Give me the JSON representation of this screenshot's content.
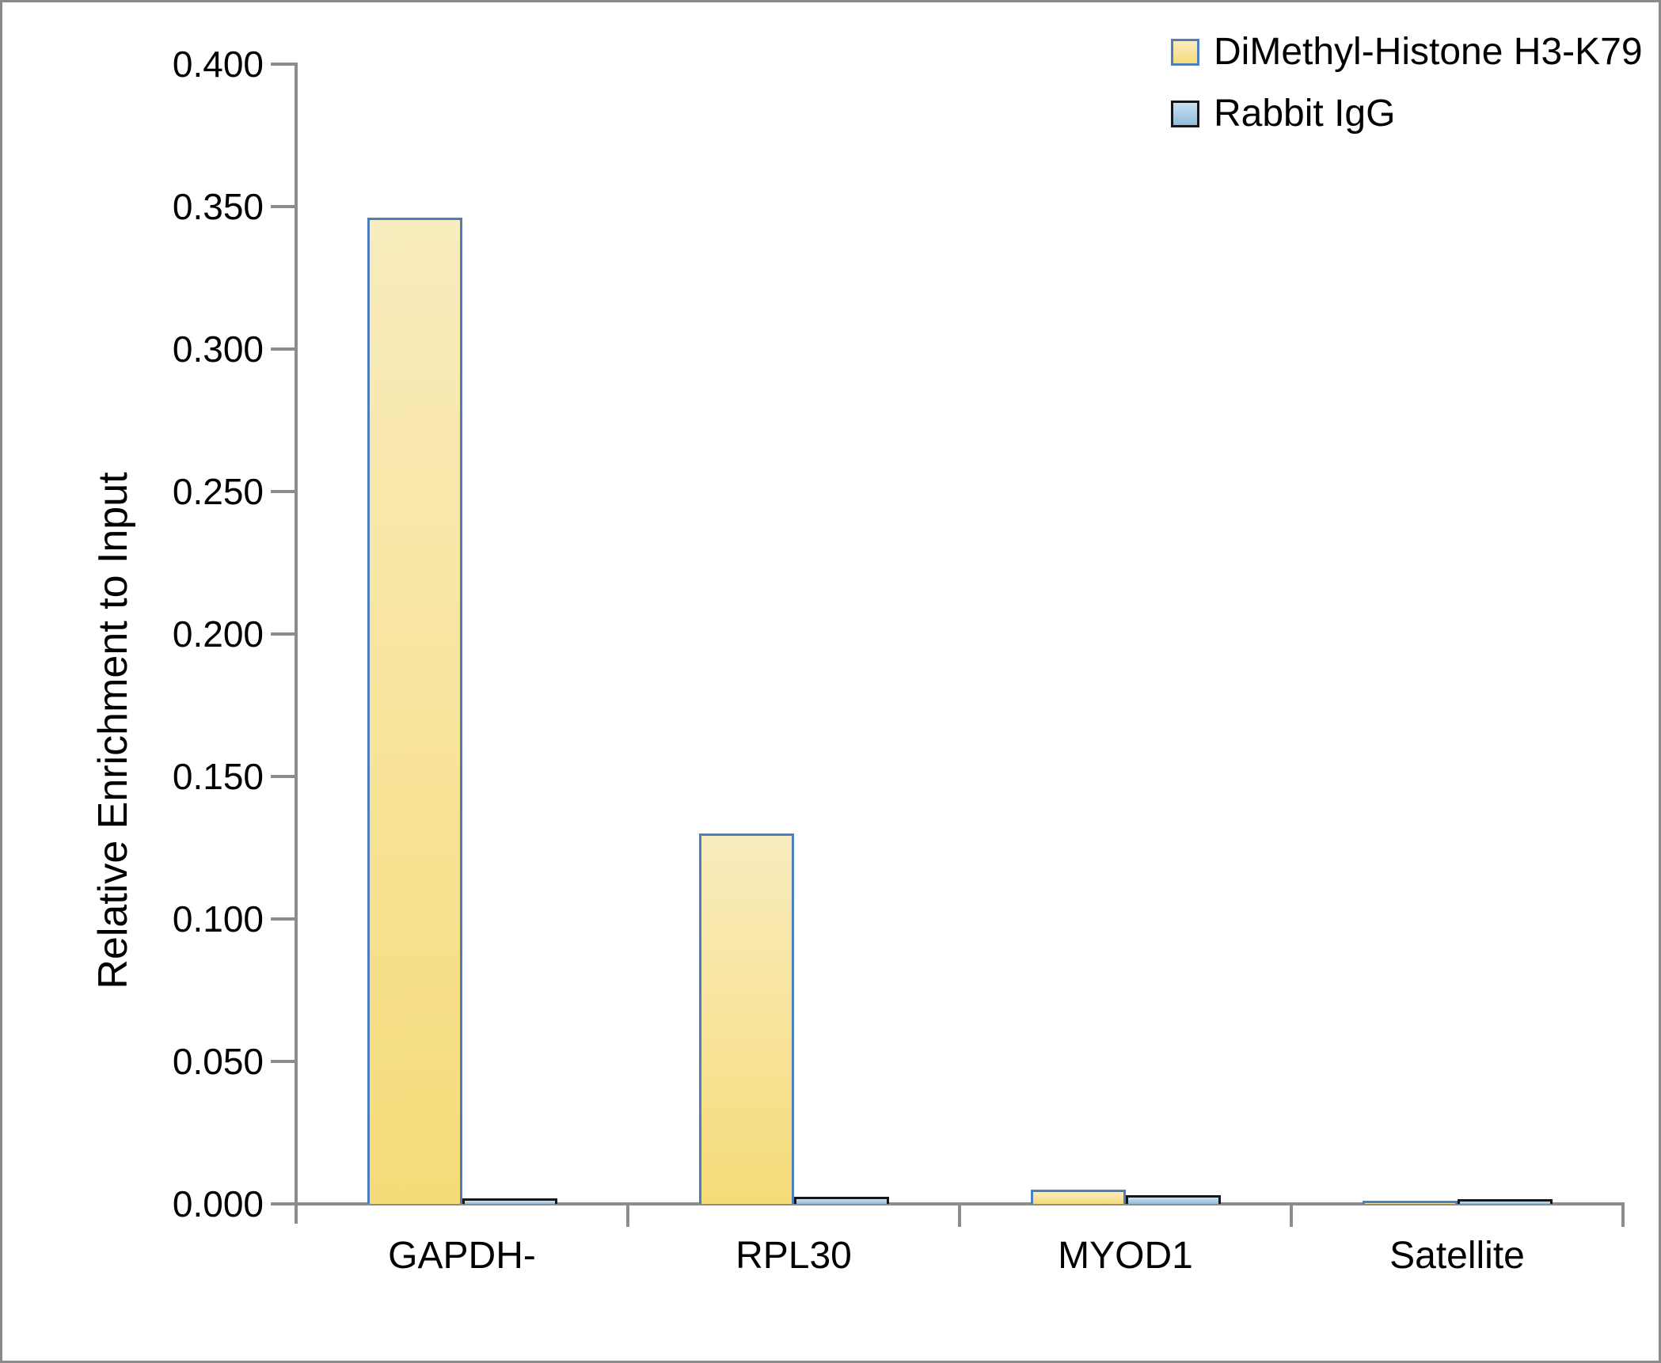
{
  "chart_data": {
    "type": "bar",
    "title": "",
    "categories": [
      "GAPDH-",
      "RPL30",
      "MYOD1",
      "Satellite"
    ],
    "series": [
      {
        "name": "DiMethyl-Histone H3-K79",
        "values": [
          0.346,
          0.13,
          0.005,
          0.001
        ],
        "fill_gradient_top": "#F9ECBE",
        "fill_gradient_bottom": "#F6DB79",
        "border_color": "#4D7EBB"
      },
      {
        "name": "Rabbit IgG",
        "values": [
          0.002,
          0.0025,
          0.003,
          0.0017
        ],
        "fill_gradient_top": "#CAE1F2",
        "fill_gradient_bottom": "#8FBCDB",
        "border_color": "#161616"
      }
    ],
    "xlabel": "",
    "ylabel": "Relative Enrichment to Input",
    "ylim": [
      0,
      0.4
    ],
    "ytick_step": 0.05,
    "ytick_labels": [
      "0.000",
      "0.050",
      "0.100",
      "0.150",
      "0.200",
      "0.250",
      "0.300",
      "0.350",
      "0.400"
    ],
    "legend_position": "top-right",
    "grid": false
  },
  "colors": {
    "axis": "#8C8C8C",
    "text": "#000000",
    "background": "#FFFFFF",
    "frame": "#8A8A8A"
  }
}
